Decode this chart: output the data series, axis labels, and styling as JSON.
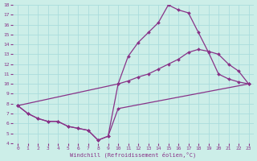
{
  "background_color": "#cceee8",
  "grid_color": "#aadddd",
  "line_color": "#883388",
  "xlabel": "Windchill (Refroidissement éolien,°C)",
  "xlim": [
    -0.5,
    23.5
  ],
  "ylim": [
    4,
    18
  ],
  "xticks": [
    0,
    1,
    2,
    3,
    4,
    5,
    6,
    7,
    8,
    9,
    10,
    11,
    12,
    13,
    14,
    15,
    16,
    17,
    18,
    19,
    20,
    21,
    22,
    23
  ],
  "yticks": [
    4,
    5,
    6,
    7,
    8,
    9,
    10,
    11,
    12,
    13,
    14,
    15,
    16,
    17,
    18
  ],
  "line1_x": [
    0,
    1,
    2,
    3,
    4,
    5,
    6,
    7,
    8,
    9,
    10,
    23
  ],
  "line1_y": [
    7.8,
    7.0,
    6.5,
    6.2,
    6.2,
    5.7,
    5.5,
    5.3,
    4.3,
    4.7,
    7.5,
    10.0
  ],
  "line2_x": [
    0,
    1,
    2,
    3,
    4,
    5,
    6,
    7,
    8,
    9,
    10,
    11,
    12,
    13,
    14,
    15,
    16,
    17,
    18,
    19,
    20,
    21,
    22,
    23
  ],
  "line2_y": [
    7.8,
    7.0,
    6.5,
    6.2,
    6.2,
    5.7,
    5.5,
    5.3,
    4.3,
    4.7,
    10.0,
    12.8,
    14.2,
    15.2,
    16.2,
    18.0,
    17.5,
    17.2,
    15.2,
    13.2,
    11.0,
    10.5,
    10.2,
    10.0
  ],
  "line3_x": [
    0,
    10,
    11,
    12,
    13,
    14,
    15,
    16,
    17,
    18,
    19,
    20,
    21,
    22,
    23
  ],
  "line3_y": [
    7.8,
    10.0,
    10.3,
    10.7,
    11.0,
    11.5,
    12.0,
    12.5,
    13.2,
    13.5,
    13.3,
    13.0,
    12.0,
    11.3,
    10.0
  ]
}
